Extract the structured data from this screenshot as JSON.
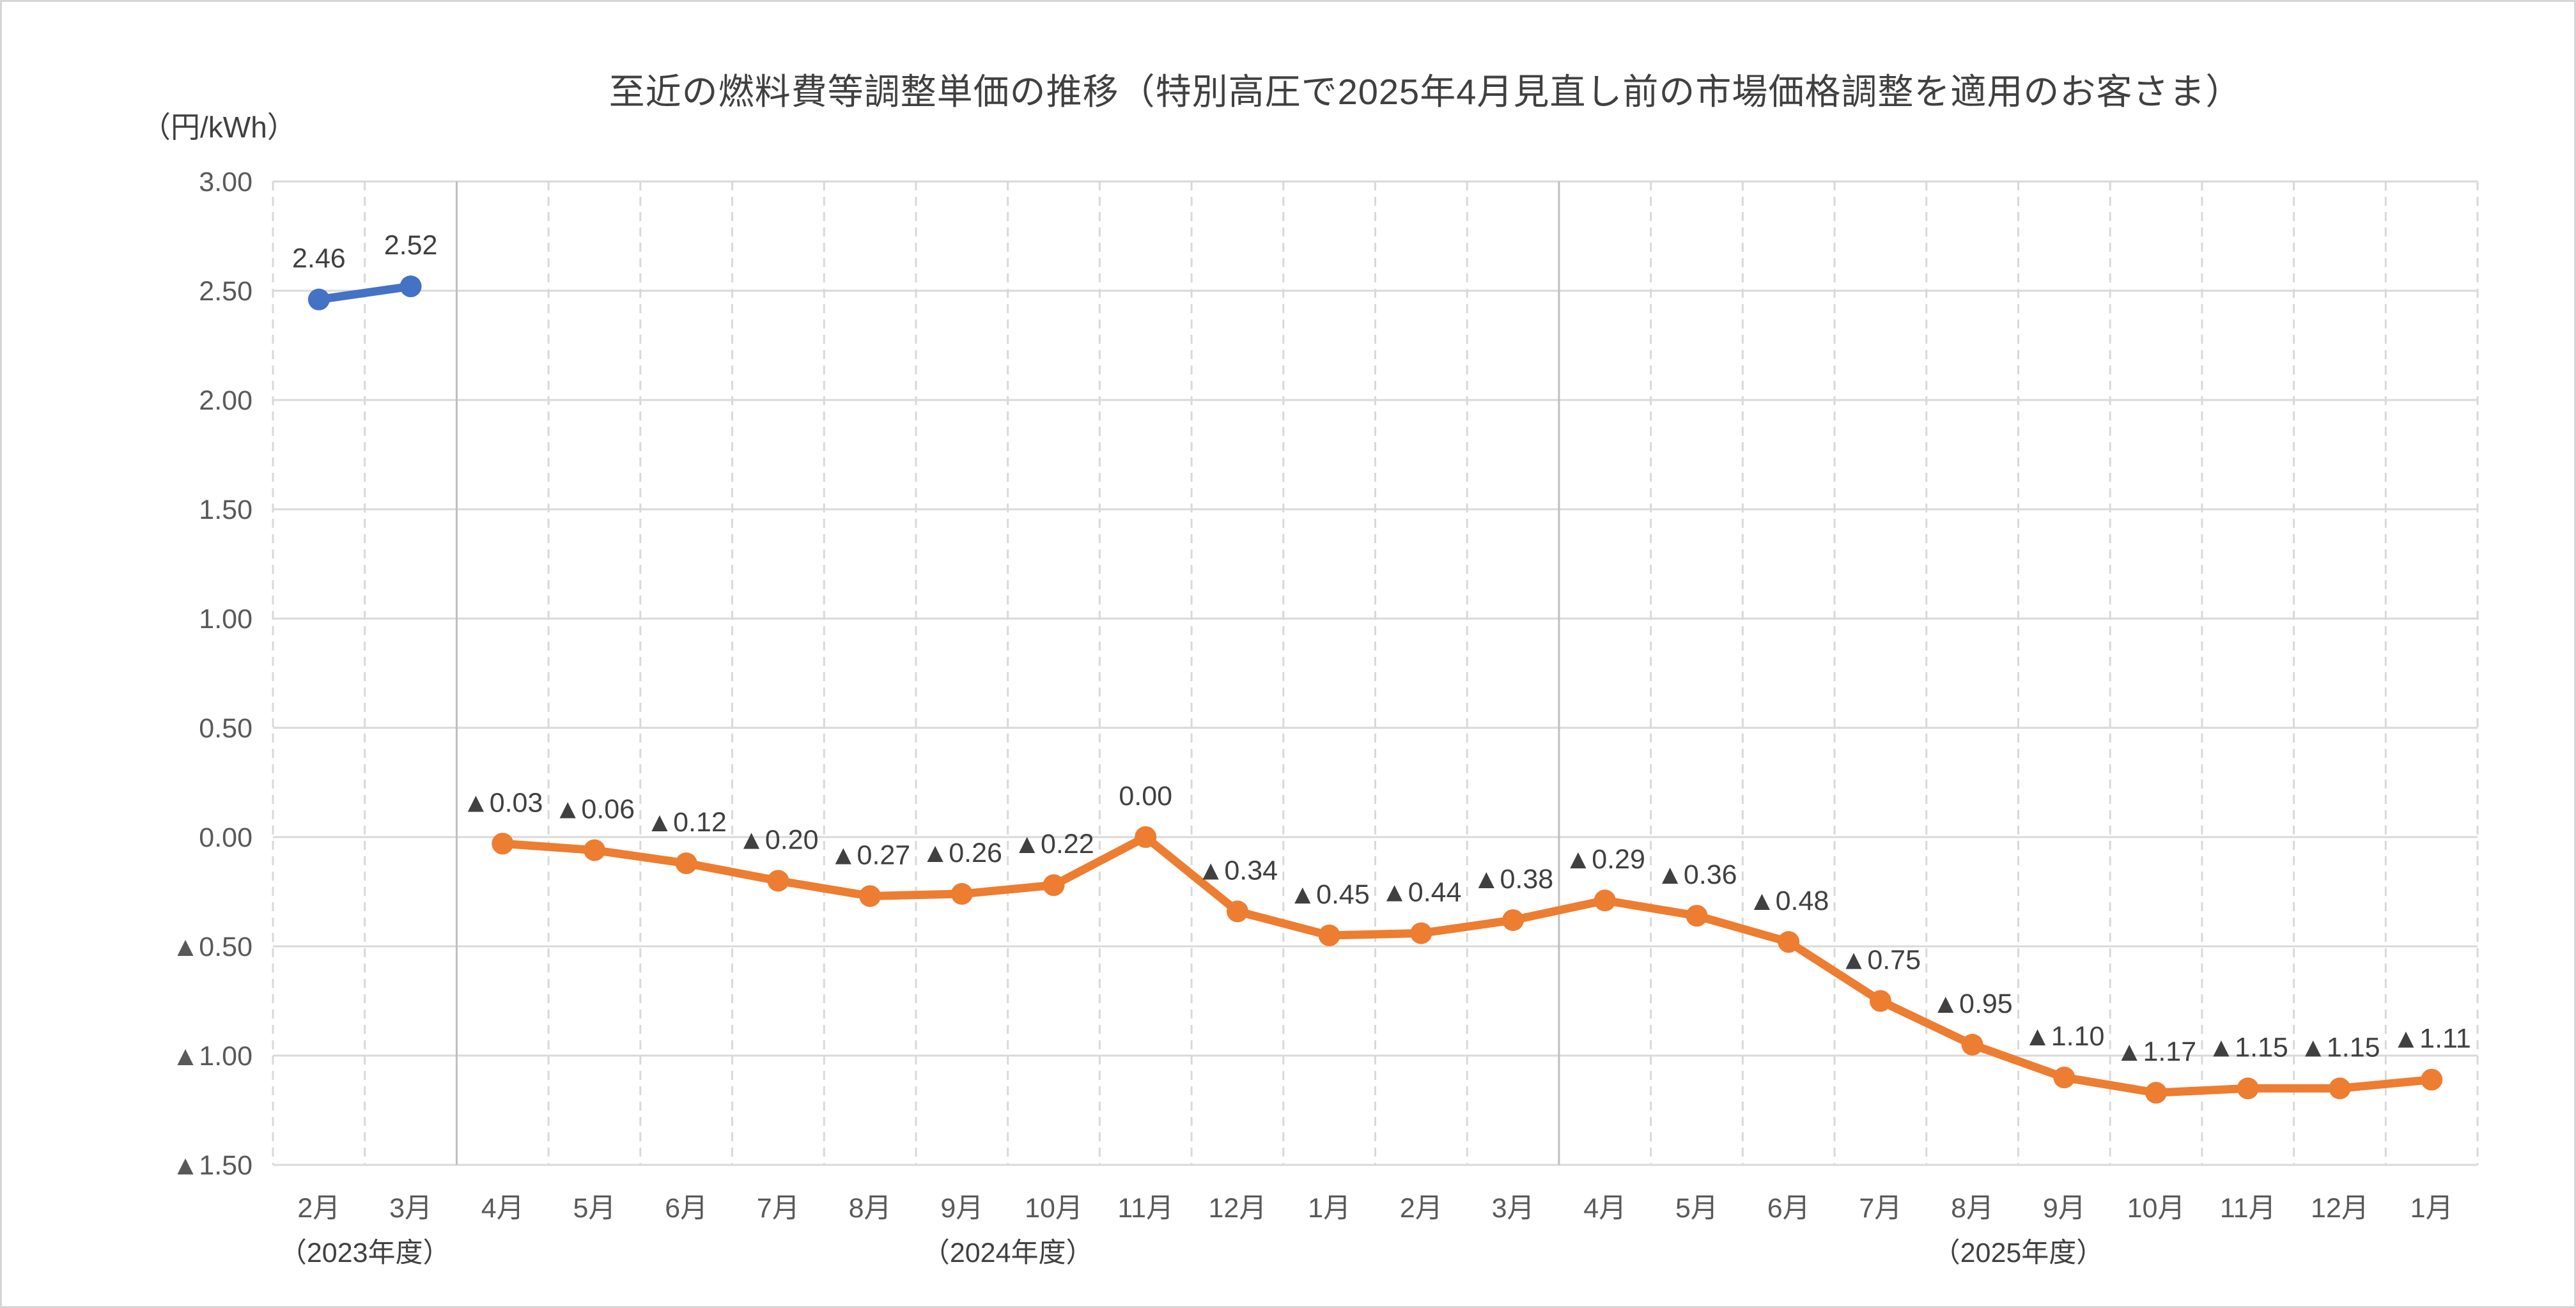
{
  "page": {
    "background_color": "#ffffff",
    "frame_border_color": "#d6d6d6"
  },
  "chart_data": {
    "type": "line",
    "title": "至近の燃料費等調整単価の推移（特別高圧で2025年4月見直し前の市場価格調整を適用のお客さま）",
    "unit_label": "（円/kWh）",
    "legend": "none",
    "categories": [
      "2月",
      "3月",
      "4月",
      "5月",
      "6月",
      "7月",
      "8月",
      "9月",
      "10月",
      "11月",
      "12月",
      "1月",
      "2月",
      "3月",
      "4月",
      "5月",
      "6月",
      "7月",
      "8月",
      "9月",
      "10月",
      "11月",
      "12月",
      "1月"
    ],
    "fiscal_year_groups": [
      {
        "label": "（2023年度）",
        "start_index": 0,
        "end_index": 1
      },
      {
        "label": "（2024年度）",
        "start_index": 2,
        "end_index": 13
      },
      {
        "label": "（2025年度）",
        "start_index": 14,
        "end_index": 23
      }
    ],
    "y_axis": {
      "min": -1.5,
      "max": 3.0,
      "step": 0.5,
      "tick_labels": [
        "3.00",
        "2.50",
        "2.00",
        "1.50",
        "1.00",
        "0.50",
        "0.00",
        "▲0.50",
        "▲1.00",
        "▲1.50"
      ],
      "negative_symbol": "▲"
    },
    "grid": {
      "horizontal_style": "solid",
      "vertical_style": "dashed",
      "fiscal_divider_style": "solid",
      "grid_color": "#d9d9d9",
      "divider_color": "#bfbfbf"
    },
    "colors": {
      "blue_series": "#4472C4",
      "orange_series": "#ED7D31",
      "data_label": "#404040",
      "axis_label": "#595959",
      "title": "#404040"
    },
    "series": [
      {
        "name": "blue-line",
        "color": "#4472C4",
        "values": [
          2.46,
          2.52,
          null,
          null,
          null,
          null,
          null,
          null,
          null,
          null,
          null,
          null,
          null,
          null,
          null,
          null,
          null,
          null,
          null,
          null,
          null,
          null,
          null,
          null
        ],
        "point_labels": [
          "2.46",
          "2.52",
          null,
          null,
          null,
          null,
          null,
          null,
          null,
          null,
          null,
          null,
          null,
          null,
          null,
          null,
          null,
          null,
          null,
          null,
          null,
          null,
          null,
          null
        ]
      },
      {
        "name": "orange-line",
        "color": "#ED7D31",
        "values": [
          null,
          null,
          -0.03,
          -0.06,
          -0.12,
          -0.2,
          -0.27,
          -0.26,
          -0.22,
          0.0,
          -0.34,
          -0.45,
          -0.44,
          -0.38,
          -0.29,
          -0.36,
          -0.48,
          -0.75,
          -0.95,
          -1.1,
          -1.17,
          -1.15,
          -1.15,
          -1.11
        ],
        "point_labels": [
          null,
          null,
          "▲0.03",
          "▲0.06",
          "▲0.12",
          "▲0.20",
          "▲0.27",
          "▲0.26",
          "▲0.22",
          "0.00",
          "▲0.34",
          "▲0.45",
          "▲0.44",
          "▲0.38",
          "▲0.29",
          "▲0.36",
          "▲0.48",
          "▲0.75",
          "▲0.95",
          "▲1.10",
          "▲1.17",
          "▲1.15",
          "▲1.15",
          "▲1.11"
        ]
      }
    ]
  }
}
